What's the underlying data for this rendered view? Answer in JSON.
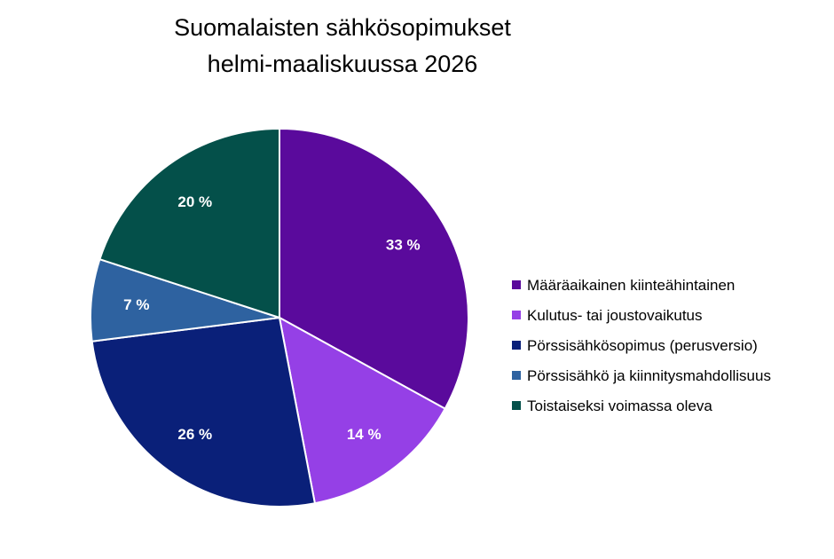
{
  "chart_data": {
    "type": "pie",
    "title": "Suomalaisten sähkösopimukset helmi-maaliskuussa 2026",
    "title_lines": [
      "Suomalaisten sähkösopimukset",
      "helmi-maaliskuussa 2026"
    ],
    "legend_position": "right",
    "start_angle_deg": 0,
    "direction": "clockwise",
    "slices": [
      {
        "name": "Määräaikainen kiinteähintainen",
        "value": 33,
        "label": "33 %",
        "color": "#5a0a9c"
      },
      {
        "name": "Kulutus- tai joustovaikutus",
        "value": 14,
        "label": "14 %",
        "color": "#9540e6"
      },
      {
        "name": "Pörssisähkösopimus (perusversio)",
        "value": 26,
        "label": "26 %",
        "color": "#0a2079"
      },
      {
        "name": "Pörssisähkö ja kiinnitysmahdollisuus",
        "value": 7,
        "label": "7 %",
        "color": "#2e62a0"
      },
      {
        "name": "Toistaiseksi voimassa oleva",
        "value": 20,
        "label": "20 %",
        "color": "#04504a"
      }
    ]
  }
}
